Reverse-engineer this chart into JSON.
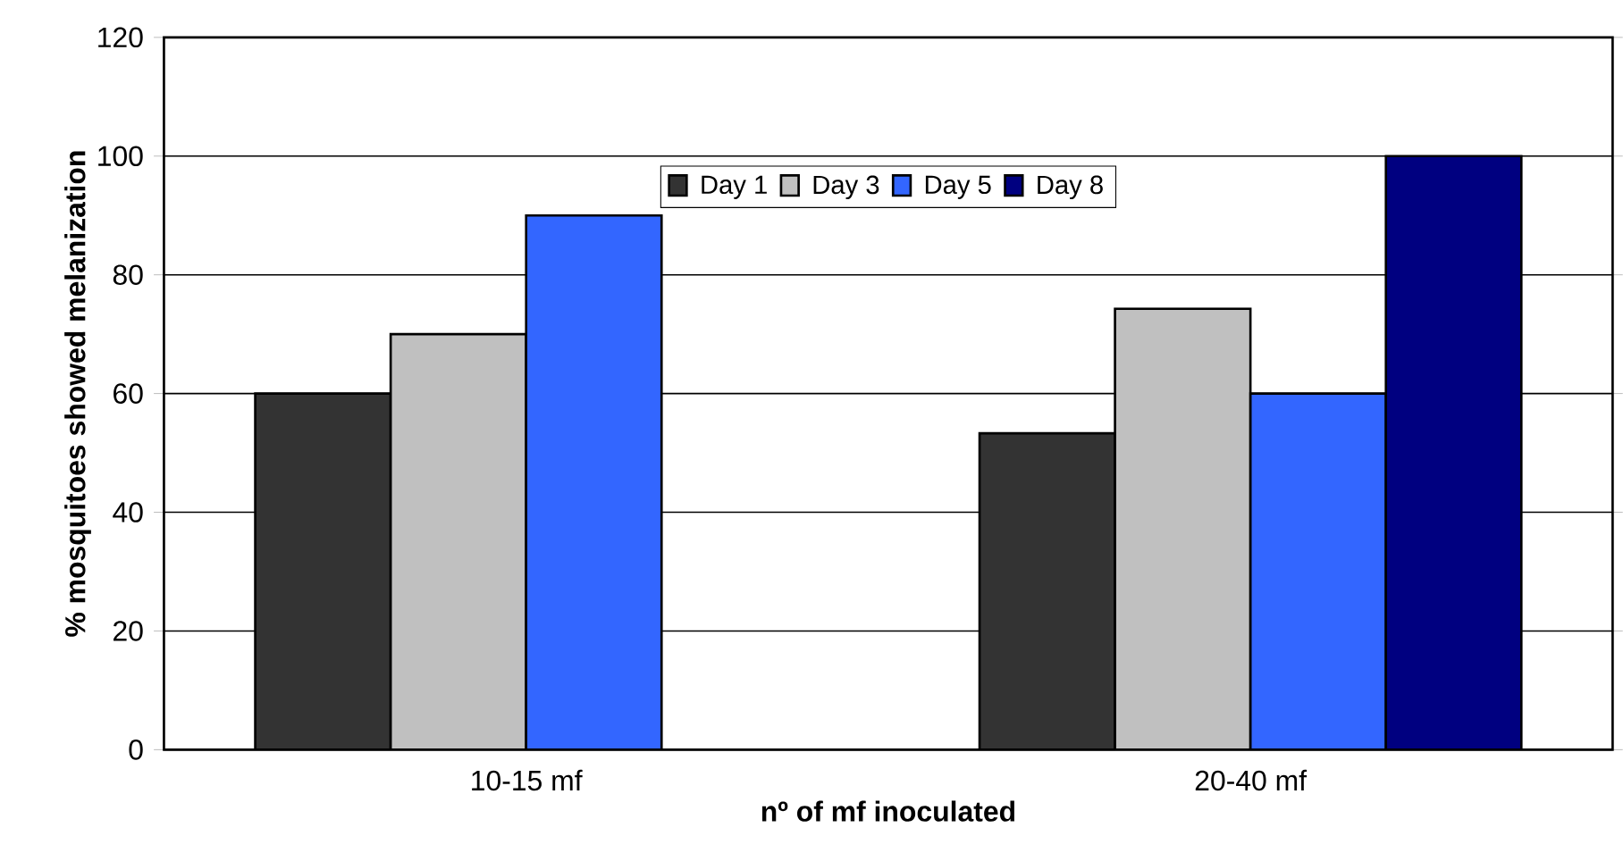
{
  "chart_data": {
    "type": "bar",
    "xlabel": "nº of mf inoculated",
    "ylabel": "% mosquitoes showed melanization",
    "categories": [
      "10-15 mf",
      "20-40 mf"
    ],
    "series": [
      {
        "name": "Day 1",
        "color": "#333333",
        "values": [
          60,
          53.3
        ]
      },
      {
        "name": "Day 3",
        "color": "#c0c0c0",
        "values": [
          70,
          74.3
        ]
      },
      {
        "name": "Day 5",
        "color": "#3366ff",
        "values": [
          90,
          60
        ]
      },
      {
        "name": "Day 8",
        "color": "#000080",
        "values": [
          null,
          100
        ]
      }
    ],
    "ylim": [
      0,
      120
    ],
    "yticks": [
      0,
      20,
      40,
      60,
      80,
      100,
      120
    ],
    "grid": "y",
    "legend": "top"
  }
}
